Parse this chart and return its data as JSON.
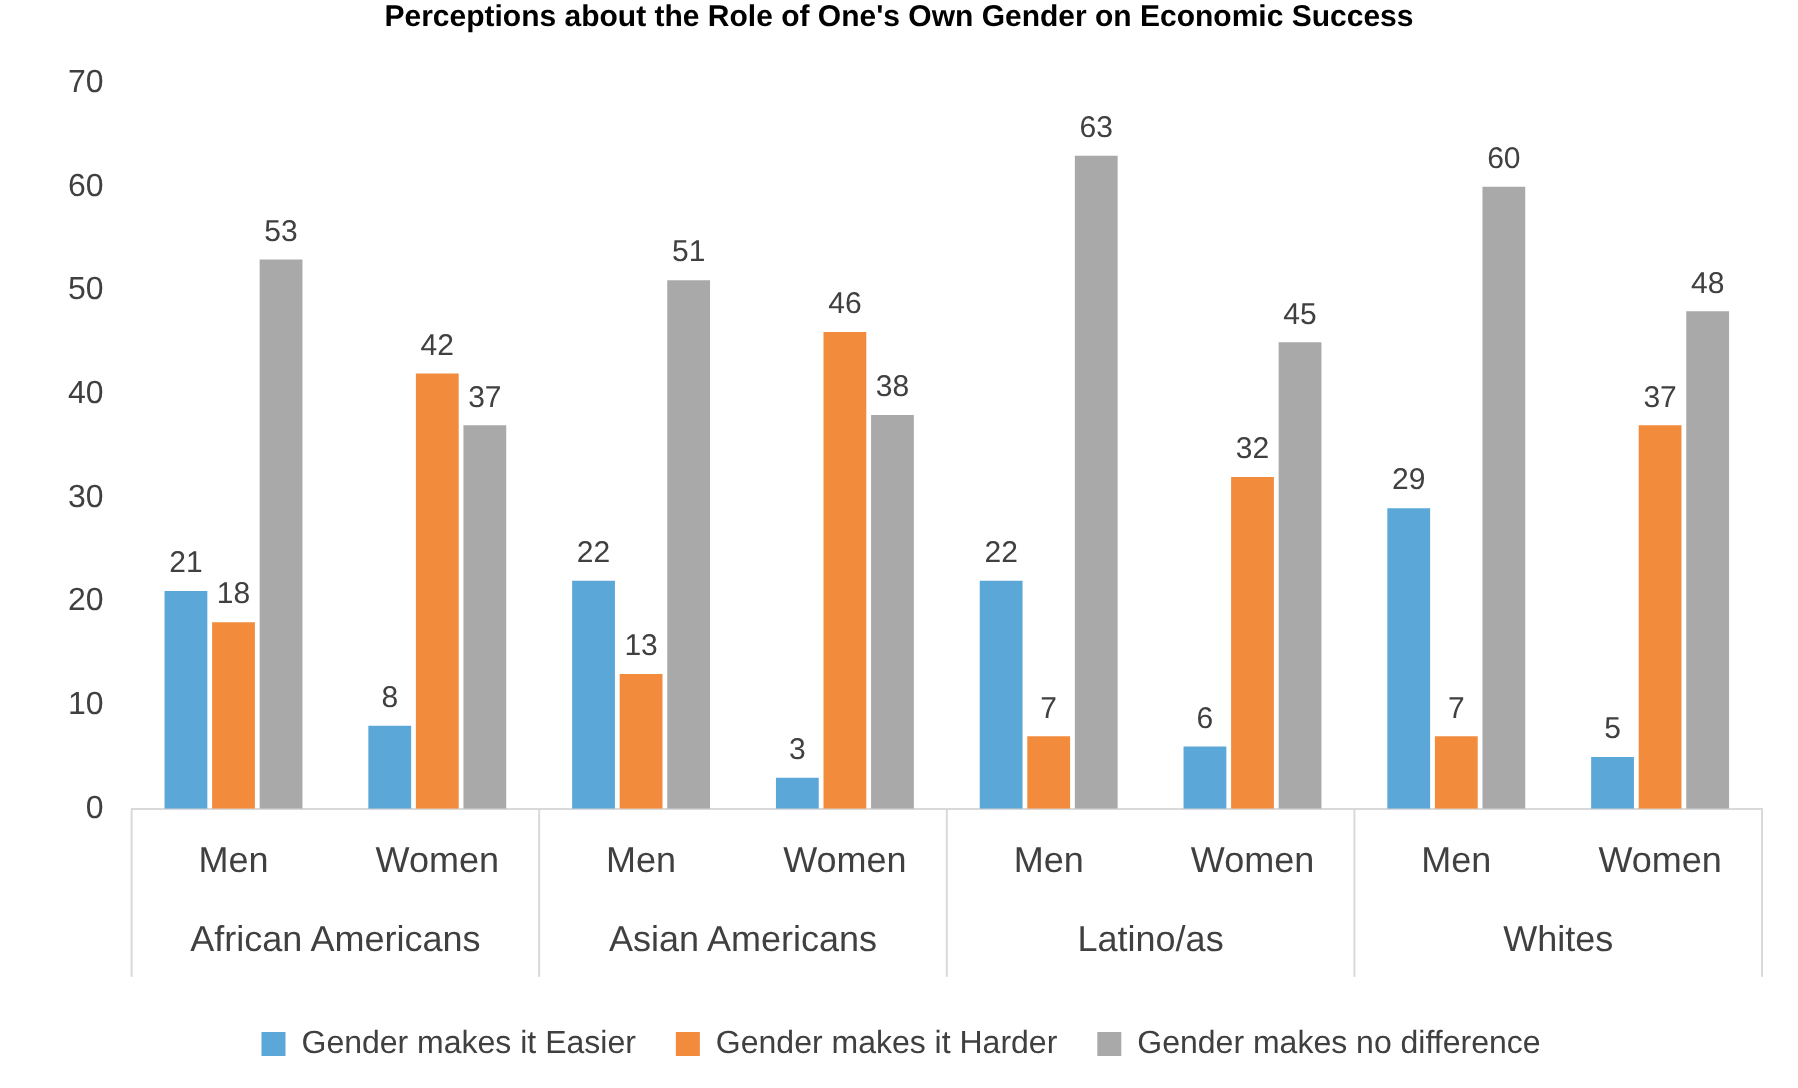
{
  "chart_data": {
    "type": "bar",
    "title": "Perceptions about the Role of One's Own Gender on Economic Success",
    "categories": [
      "Men",
      "Women",
      "Men",
      "Women",
      "Men",
      "Women",
      "Men",
      "Women"
    ],
    "annotations": [
      "African Americans",
      "Asian Americans",
      "Latino/as",
      "Whites"
    ],
    "series": [
      {
        "name": "Gender makes it Easier",
        "color": "#5ba7d8",
        "values": [
          21,
          8,
          22,
          3,
          22,
          6,
          29,
          5
        ]
      },
      {
        "name": "Gender makes it Harder",
        "color": "#f28b3c",
        "values": [
          18,
          42,
          13,
          46,
          7,
          32,
          7,
          37
        ]
      },
      {
        "name": "Gender makes no difference",
        "color": "#a9a9a9",
        "values": [
          53,
          37,
          51,
          38,
          63,
          45,
          60,
          48
        ]
      }
    ],
    "ylim": [
      0,
      70
    ],
    "yticks": [
      0,
      10,
      20,
      30,
      40,
      50,
      60,
      70
    ],
    "grid": false,
    "legend": "bottom",
    "data_labels": true
  }
}
